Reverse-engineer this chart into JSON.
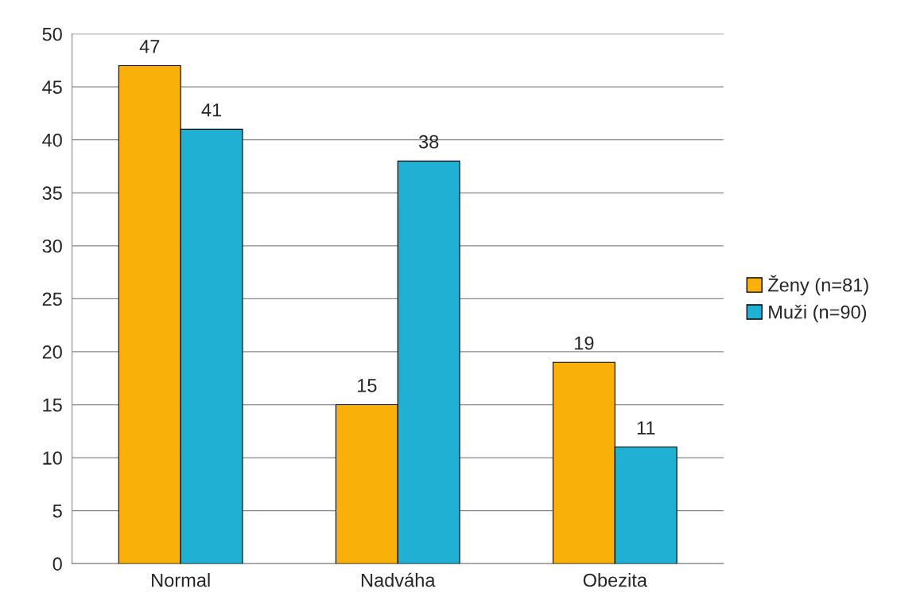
{
  "chart_data": {
    "type": "bar",
    "categories": [
      "Normal",
      "Nadváha",
      "Obezita"
    ],
    "series": [
      {
        "name": "Ženy (n=81)",
        "color": "#f9b10a",
        "values": [
          47,
          15,
          19
        ]
      },
      {
        "name": "Muži (n=90)",
        "color": "#1fb0d3",
        "values": [
          41,
          38,
          11
        ]
      }
    ],
    "ylim": [
      0,
      50
    ],
    "yticks": [
      0,
      5,
      10,
      15,
      20,
      25,
      30,
      35,
      40,
      45,
      50
    ],
    "grid": "y",
    "legend": "right",
    "data_labels": true
  }
}
